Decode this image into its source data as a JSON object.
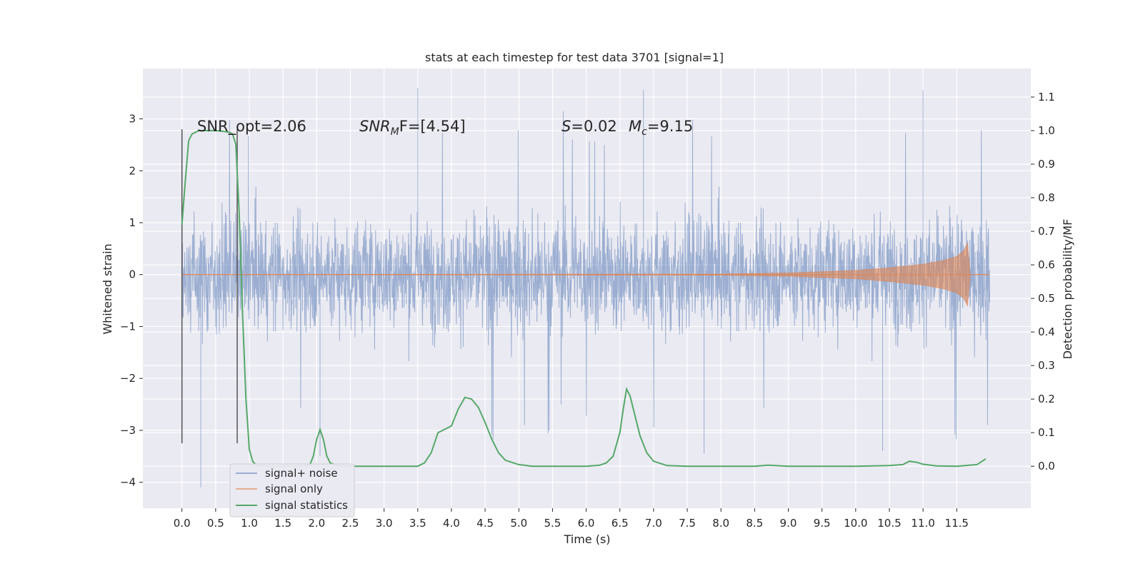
{
  "chart_data": {
    "type": "line",
    "title": "stats at each timestep for test data 3701 [signal=1]",
    "xlabel": "Time (s)",
    "ylabel": "Whitened strain",
    "y2label": "Detection probability/MF",
    "xlim": [
      -0.58,
      12.6
    ],
    "ylim": [
      -4.5,
      3.97
    ],
    "y2lim": [
      -0.125,
      1.185
    ],
    "x_ticks": [
      "0.0",
      "0.5",
      "1.0",
      "1.5",
      "2.0",
      "2.5",
      "3.0",
      "3.5",
      "4.0",
      "4.5",
      "5.0",
      "5.5",
      "6.0",
      "6.5",
      "7.0",
      "7.5",
      "8.0",
      "8.5",
      "9.0",
      "9.5",
      "10.0",
      "10.5",
      "11.0",
      "11.5"
    ],
    "y_ticks": [
      "3",
      "2",
      "1",
      "0",
      "−1",
      "−2",
      "−3",
      "−4"
    ],
    "y2_ticks": [
      "1.1",
      "1.0",
      "0.9",
      "0.8",
      "0.7",
      "0.6",
      "0.5",
      "0.4",
      "0.3",
      "0.2",
      "0.1",
      "0.0"
    ],
    "grid": true,
    "legend_placement": "lower-left",
    "annotations": {
      "snr_opt": "SNR_opt=2.06",
      "snr_mf_italic": "SNR",
      "snr_mf_sub": "M",
      "snr_mf_rest": "F=[4.54]",
      "s_italic": "S",
      "s_rest": "=0.02",
      "mc_italic": "M",
      "mc_sub": "c",
      "mc_rest": "=9.15"
    },
    "vlines": [
      0.0,
      0.82
    ],
    "series": [
      {
        "name": "signal+ noise",
        "color": "#4c72b0",
        "description_points": {
          "x_range": [
            0.0,
            11.99
          ],
          "typical_range": [
            -1.8,
            2.1
          ],
          "extremes": [
            [
              0.28,
              -4.1
            ],
            [
              3.5,
              3.6
            ],
            [
              6.85,
              3.55
            ],
            [
              11.0,
              3.55
            ],
            [
              2.05,
              -3.5
            ],
            [
              7.75,
              -3.45
            ],
            [
              10.4,
              -3.4
            ]
          ]
        }
      },
      {
        "name": "signal only",
        "color": "#dd8452",
        "envelope": [
          [
            0.0,
            0.0
          ],
          [
            8.0,
            0.01
          ],
          [
            9.0,
            0.03
          ],
          [
            10.0,
            0.08
          ],
          [
            10.5,
            0.13
          ],
          [
            11.0,
            0.2
          ],
          [
            11.3,
            0.27
          ],
          [
            11.5,
            0.35
          ],
          [
            11.6,
            0.45
          ],
          [
            11.66,
            0.6
          ],
          [
            11.7,
            0.0
          ],
          [
            11.99,
            0.0
          ]
        ]
      },
      {
        "name": "signal statistics",
        "color": "#55a868",
        "axis": "right",
        "x": [
          0.0,
          0.05,
          0.1,
          0.15,
          0.2,
          0.25,
          0.3,
          0.4,
          0.5,
          0.6,
          0.7,
          0.75,
          0.8,
          0.85,
          0.9,
          0.95,
          1.0,
          1.05,
          1.1,
          1.2,
          1.4,
          1.6,
          1.8,
          1.9,
          1.95,
          2.0,
          2.05,
          2.1,
          2.15,
          2.2,
          2.3,
          2.5,
          3.0,
          3.5,
          3.6,
          3.7,
          3.8,
          3.9,
          4.0,
          4.1,
          4.2,
          4.3,
          4.4,
          4.5,
          4.6,
          4.7,
          4.8,
          5.0,
          5.2,
          5.5,
          6.0,
          6.2,
          6.3,
          6.4,
          6.5,
          6.55,
          6.6,
          6.65,
          6.7,
          6.8,
          6.9,
          7.0,
          7.2,
          7.5,
          8.0,
          8.5,
          8.7,
          8.8,
          9.0,
          10.0,
          10.5,
          10.7,
          10.8,
          10.9,
          11.0,
          11.2,
          11.5,
          11.8,
          11.93
        ],
        "values": [
          0.72,
          0.85,
          0.97,
          0.99,
          0.995,
          1.0,
          1.0,
          1.0,
          1.0,
          0.998,
          0.995,
          0.99,
          0.96,
          0.75,
          0.45,
          0.2,
          0.05,
          0.015,
          0.003,
          0.0,
          0.0,
          0.0,
          0.0,
          0.005,
          0.03,
          0.08,
          0.11,
          0.08,
          0.03,
          0.01,
          0.002,
          0.0,
          0.0,
          0.0,
          0.01,
          0.04,
          0.1,
          0.11,
          0.12,
          0.17,
          0.205,
          0.2,
          0.175,
          0.13,
          0.08,
          0.04,
          0.018,
          0.005,
          0.0,
          0.0,
          0.0,
          0.003,
          0.01,
          0.03,
          0.1,
          0.17,
          0.23,
          0.21,
          0.17,
          0.09,
          0.04,
          0.015,
          0.002,
          0.0,
          0.0,
          0.0,
          0.003,
          0.002,
          0.0,
          0.0,
          0.002,
          0.005,
          0.015,
          0.012,
          0.006,
          0.001,
          0.0,
          0.005,
          0.022
        ]
      }
    ]
  }
}
